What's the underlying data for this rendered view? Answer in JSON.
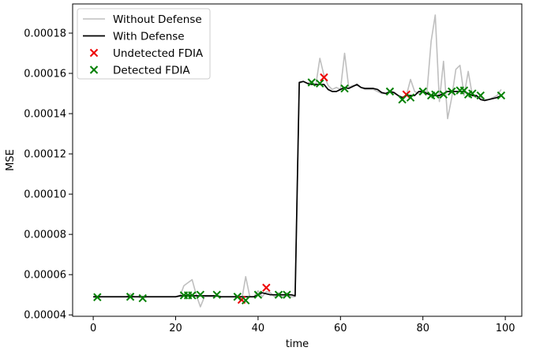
{
  "chart_data": {
    "type": "line",
    "xlabel": "time",
    "ylabel": "MSE",
    "xlim": [
      -5,
      104
    ],
    "ylim": [
      3.93e-05,
      0.0001945
    ],
    "xticks": [
      0,
      20,
      40,
      60,
      80,
      100
    ],
    "xtick_labels": [
      "0",
      "20",
      "40",
      "60",
      "80",
      "100"
    ],
    "yticks": [
      4e-05,
      6e-05,
      8e-05,
      0.0001,
      0.00012,
      0.00014,
      0.00016,
      0.00018
    ],
    "ytick_labels": [
      "0.00004",
      "0.00006",
      "0.00008",
      "0.00010",
      "0.00012",
      "0.00014",
      "0.00016",
      "0.00018"
    ],
    "grid": false,
    "legend_position": "top-left",
    "series": [
      {
        "name": "Without Defense",
        "kind": "line",
        "color": "#bfbfbf",
        "x": [
          0,
          1,
          2,
          3,
          4,
          5,
          6,
          7,
          8,
          9,
          10,
          11,
          12,
          13,
          14,
          15,
          16,
          17,
          18,
          19,
          20,
          21,
          22,
          23,
          24,
          25,
          26,
          27,
          28,
          29,
          30,
          31,
          32,
          33,
          34,
          35,
          36,
          37,
          38,
          39,
          40,
          41,
          42,
          43,
          44,
          45,
          46,
          47,
          48,
          49,
          50,
          51,
          52,
          53,
          54,
          55,
          56,
          57,
          58,
          59,
          60,
          61,
          62,
          63,
          64,
          65,
          66,
          67,
          68,
          69,
          70,
          71,
          72,
          73,
          74,
          75,
          76,
          77,
          78,
          79,
          80,
          81,
          82,
          83,
          84,
          85,
          86,
          87,
          88,
          89,
          90,
          91,
          92,
          93,
          94,
          95,
          96,
          97,
          98,
          99
        ],
        "y": [
          4.9e-05,
          4.85e-05,
          4.9e-05,
          4.9e-05,
          4.9e-05,
          4.9e-05,
          4.9e-05,
          4.9e-05,
          4.9e-05,
          5.05e-05,
          4.9e-05,
          4.9e-05,
          4.82e-05,
          4.9e-05,
          4.9e-05,
          4.9e-05,
          4.9e-05,
          4.9e-05,
          4.9e-05,
          4.9e-05,
          4.9e-05,
          4.9e-05,
          5.45e-05,
          5.6e-05,
          5.75e-05,
          5e-05,
          4.4e-05,
          4.9e-05,
          4.9e-05,
          4.9e-05,
          4.9e-05,
          4.9e-05,
          4.9e-05,
          4.9e-05,
          4.9e-05,
          4.9e-05,
          4.7e-05,
          5.9e-05,
          4.9e-05,
          4.9e-05,
          5.2e-05,
          4.9e-05,
          5.15e-05,
          5.1e-05,
          4.9e-05,
          5.1e-05,
          4.9e-05,
          5.1e-05,
          4.9e-05,
          4.9e-05,
          0.000155,
          0.000156,
          0.000155,
          0.000156,
          0.000154,
          0.0001675,
          0.000159,
          0.000154,
          0.000152,
          0.000153,
          0.000152,
          0.00017,
          0.000153,
          0.000154,
          0.000154,
          0.000153,
          0.000152,
          0.000152,
          0.000152,
          0.000151,
          0.00015,
          0.00015,
          0.000151,
          0.00015,
          0.000149,
          0.000147,
          0.000149,
          0.000157,
          0.000151,
          0.00015,
          0.000151,
          0.000151,
          0.000176,
          0.000189,
          0.000146,
          0.000166,
          0.0001375,
          0.000148,
          0.000162,
          0.000164,
          0.000149,
          0.000161,
          0.000149,
          0.000148,
          0.000148,
          0.000147,
          0.000147,
          0.000148,
          0.000149,
          0.000152
        ]
      },
      {
        "name": "With Defense",
        "kind": "line",
        "color": "#000000",
        "x": [
          0,
          1,
          2,
          3,
          4,
          5,
          6,
          7,
          8,
          9,
          10,
          11,
          12,
          13,
          14,
          15,
          16,
          17,
          18,
          19,
          20,
          21,
          22,
          23,
          24,
          25,
          26,
          27,
          28,
          29,
          30,
          31,
          32,
          33,
          34,
          35,
          36,
          37,
          38,
          39,
          40,
          41,
          42,
          43,
          44,
          45,
          46,
          47,
          48,
          49,
          50,
          51,
          52,
          53,
          54,
          55,
          56,
          57,
          58,
          59,
          60,
          61,
          62,
          63,
          64,
          65,
          66,
          67,
          68,
          69,
          70,
          71,
          72,
          73,
          74,
          75,
          76,
          77,
          78,
          79,
          80,
          81,
          82,
          83,
          84,
          85,
          86,
          87,
          88,
          89,
          90,
          91,
          92,
          93,
          94,
          95,
          96,
          97,
          98,
          99
        ],
        "y": [
          4.9e-05,
          4.9e-05,
          4.9e-05,
          4.9e-05,
          4.9e-05,
          4.9e-05,
          4.9e-05,
          4.9e-05,
          4.9e-05,
          4.9e-05,
          4.9e-05,
          4.9e-05,
          4.9e-05,
          4.9e-05,
          4.9e-05,
          4.9e-05,
          4.9e-05,
          4.9e-05,
          4.9e-05,
          4.9e-05,
          4.9e-05,
          4.95e-05,
          4.95e-05,
          4.95e-05,
          4.95e-05,
          4.95e-05,
          4.95e-05,
          4.95e-05,
          4.95e-05,
          4.95e-05,
          4.95e-05,
          4.9e-05,
          4.9e-05,
          4.9e-05,
          4.9e-05,
          4.9e-05,
          4.9e-05,
          4.9e-05,
          4.9e-05,
          4.9e-05,
          5e-05,
          5.1e-05,
          5.05e-05,
          5e-05,
          5e-05,
          5e-05,
          5e-05,
          5e-05,
          5e-05,
          4.95e-05,
          0.0001555,
          0.000156,
          0.000155,
          0.0001545,
          0.0001545,
          0.0001545,
          0.0001545,
          0.000152,
          0.000151,
          0.000151,
          0.000152,
          0.000153,
          0.0001525,
          0.0001535,
          0.0001545,
          0.000153,
          0.0001525,
          0.0001525,
          0.0001525,
          0.000152,
          0.0001505,
          0.00015,
          0.000151,
          0.0001505,
          0.000149,
          0.000148,
          0.000149,
          0.000149,
          0.000149,
          0.000151,
          0.000151,
          0.00015,
          0.000149,
          0.000149,
          0.000149,
          0.00015,
          0.000151,
          0.000151,
          0.000151,
          0.000151,
          0.000151,
          0.00015,
          0.000149,
          0.000149,
          0.000147,
          0.0001465,
          0.000147,
          0.0001475,
          0.000148,
          0.000149
        ]
      },
      {
        "name": "Undetected FDIA",
        "kind": "scatter",
        "marker": "x",
        "color": "#ee0000",
        "x": [
          36,
          42,
          56,
          76
        ],
        "y": [
          4.75e-05,
          5.35e-05,
          0.000158,
          0.0001495
        ]
      },
      {
        "name": "Detected FDIA",
        "kind": "scatter",
        "marker": "x",
        "color": "#008000",
        "x": [
          1,
          9,
          12,
          22,
          23,
          24,
          26,
          30,
          35,
          37,
          40,
          45,
          47,
          53,
          55,
          61,
          72,
          75,
          77,
          80,
          82,
          83,
          85,
          87,
          89,
          90,
          91,
          92,
          94,
          99
        ],
        "y": [
          4.88e-05,
          4.9e-05,
          4.83e-05,
          4.97e-05,
          4.97e-05,
          4.97e-05,
          5e-05,
          5e-05,
          4.9e-05,
          4.72e-05,
          5e-05,
          5e-05,
          5e-05,
          0.0001555,
          0.000155,
          0.0001525,
          0.000151,
          0.000147,
          0.000148,
          0.000151,
          0.000149,
          0.0001495,
          0.0001495,
          0.000151,
          0.0001515,
          0.0001515,
          0.0001495,
          0.00015,
          0.000149,
          0.000149
        ]
      }
    ]
  }
}
